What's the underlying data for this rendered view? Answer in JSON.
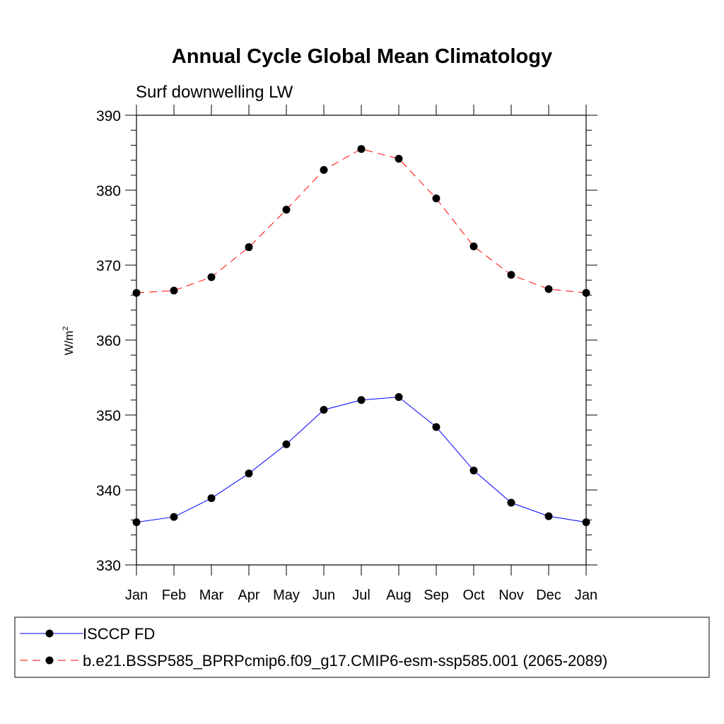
{
  "chart_data": {
    "type": "line",
    "title": "Annual Cycle Global Mean Climatology",
    "subtitle": "Surf downwelling LW",
    "xlabel": "",
    "ylabel": "W/m",
    "ylabel_sup": "2",
    "ylim": [
      330,
      390
    ],
    "yticks": [
      330,
      340,
      350,
      360,
      370,
      380,
      390
    ],
    "categories": [
      "Jan",
      "Feb",
      "Mar",
      "Apr",
      "May",
      "Jun",
      "Jul",
      "Aug",
      "Sep",
      "Oct",
      "Nov",
      "Dec",
      "Jan"
    ],
    "series": [
      {
        "name": "ISCCP FD",
        "color": "#0000ff",
        "dash": "solid",
        "values": [
          335.7,
          336.4,
          338.9,
          342.2,
          346.1,
          350.7,
          352.0,
          352.4,
          348.4,
          342.6,
          338.3,
          336.5,
          335.7
        ]
      },
      {
        "name": "b.e21.BSSP585_BPRPcmip6.f09_g17.CMIP6-esm-ssp585.001 (2065-2089)",
        "color": "#ff0000",
        "dash": "dashed",
        "values": [
          366.3,
          366.6,
          368.4,
          372.4,
          377.4,
          382.7,
          385.5,
          384.2,
          378.9,
          372.5,
          368.7,
          366.8,
          366.3
        ]
      }
    ],
    "legend_position": "bottom"
  }
}
